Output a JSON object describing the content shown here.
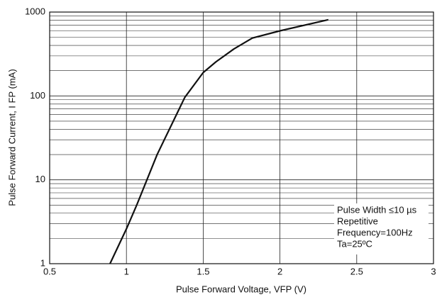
{
  "chart_data": {
    "type": "line",
    "xlabel": "Pulse Forward Voltage, VFP (V)",
    "ylabel": "Pulse Forward Current, I FP (mA)",
    "x": [
      0.893,
      1.0,
      1.069,
      1.2,
      1.38,
      1.5,
      1.583,
      1.7,
      1.82,
      2.005,
      2.315
    ],
    "series": [
      {
        "name": "IFP",
        "color": "#111111",
        "values": [
          1,
          2.6,
          5.1,
          20,
          96,
          190,
          255,
          363,
          490,
          600,
          810
        ]
      }
    ],
    "xlim": [
      0.5,
      3
    ],
    "xticks": [
      0.5,
      1,
      1.5,
      2,
      2.5,
      3
    ],
    "ylim": [
      1,
      1000
    ],
    "yticks": [
      1,
      10,
      100,
      1000
    ],
    "y_minor_ticks": [
      2,
      3,
      4,
      5,
      6,
      7,
      8,
      9,
      20,
      30,
      40,
      50,
      60,
      70,
      80,
      90,
      200,
      300,
      400,
      500,
      600,
      700,
      800,
      900
    ],
    "log_y": true,
    "grid": true,
    "annotations": [
      "Pulse Width ≤10 µs",
      "Repetitive",
      "Frequency=100Hz",
      "Ta=25ºC"
    ]
  }
}
